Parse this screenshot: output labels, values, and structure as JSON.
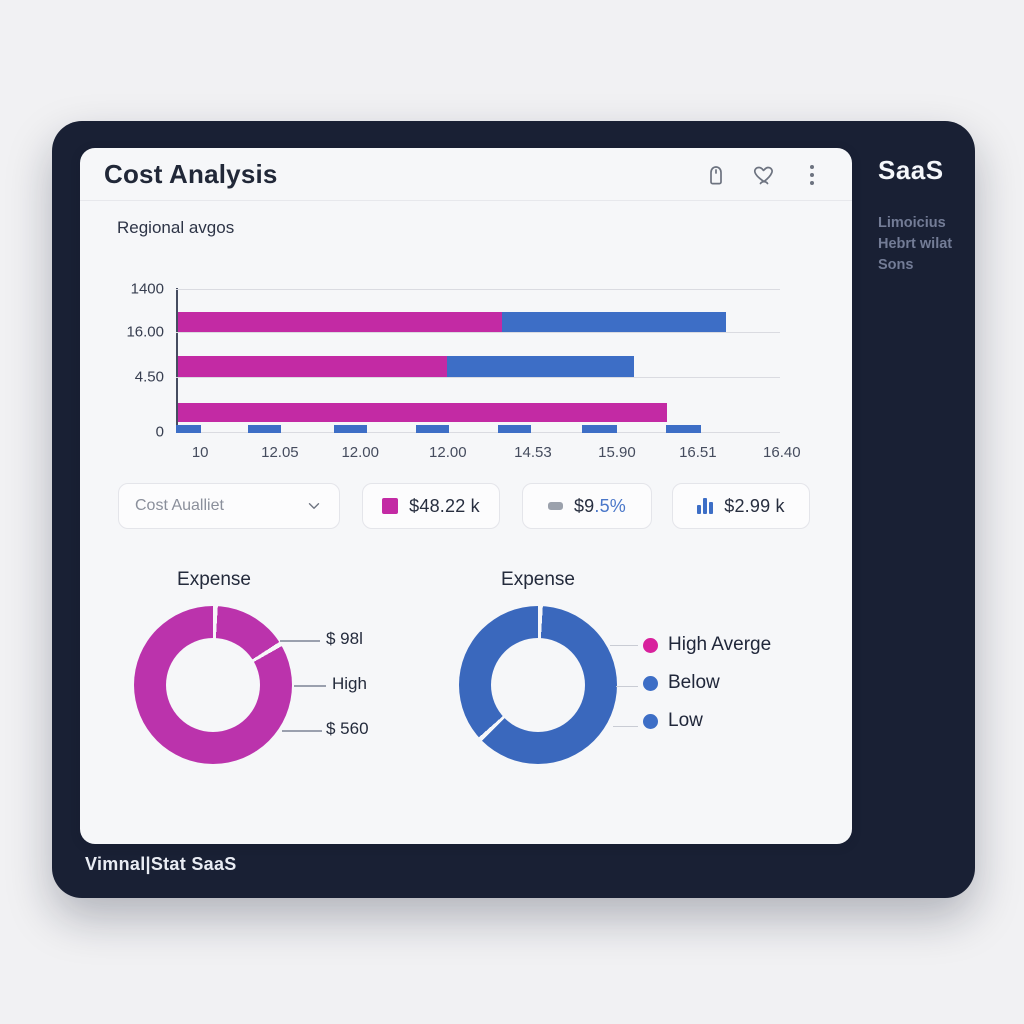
{
  "app": {
    "brand": "SaaS",
    "sidebar_notes": [
      "Limoicius",
      "Hebrt wilat",
      "Sons"
    ],
    "footer_brand": "Vimnal|Stat SaaS"
  },
  "header": {
    "title": "Cost Analysis"
  },
  "subtitle": "Regional avgos",
  "stats": {
    "dropdown": {
      "label": "Cost Aualliet"
    },
    "cards": [
      {
        "icon": "magenta-square",
        "icon_color": "#c32aa4",
        "value": "$48.22 k"
      },
      {
        "icon": "gray-pill",
        "icon_color": "#9ba1ac",
        "value_dark": "$9",
        "value_blue": ".5%"
      },
      {
        "icon": "blue-bars",
        "icon_color": "#3d6ec6",
        "value": "$2.99 k"
      }
    ]
  },
  "chart_data": [
    {
      "type": "bar",
      "id": "regional-stacked-bars",
      "title": "Regional avgos",
      "orientation": "horizontal",
      "stacked": true,
      "grid": true,
      "y_tick_labels": [
        "1400",
        "16.00",
        "4.50",
        "0"
      ],
      "x_tick_labels": [
        "10",
        "12.05",
        "12.00",
        "12.00",
        "14.53",
        "15.90",
        "16.51",
        "16.40"
      ],
      "series": [
        {
          "name": "primary",
          "color": "#c32aa4"
        },
        {
          "name": "secondary",
          "color": "#3d6ec6"
        }
      ],
      "bars": [
        {
          "primary_pct": 53.6,
          "secondary_pct": 37.1
        },
        {
          "primary_pct": 44.5,
          "secondary_pct": 31.0
        },
        {
          "primary_pct": 81.0,
          "secondary_pct": 0
        }
      ],
      "baseline_dashes_pct": [
        [
          0,
          4.1
        ],
        [
          11.9,
          5.5
        ],
        [
          26.2,
          5.5
        ],
        [
          39.7,
          5.5
        ],
        [
          53.3,
          5.5
        ],
        [
          67.2,
          5.8
        ],
        [
          81.1,
          5.8
        ]
      ],
      "dash_color": "#3d6ec6"
    },
    {
      "type": "pie",
      "subtype": "donut",
      "id": "expense-left",
      "title": "Expense",
      "color": "#bb33ac",
      "gap_angles": [
        0,
        57
      ],
      "slices_pct": [
        15.8,
        84.2
      ],
      "labels": [
        "$ 98l",
        "High",
        "$ 560"
      ]
    },
    {
      "type": "pie",
      "subtype": "donut",
      "id": "expense-right",
      "title": "Expense",
      "color": "#3a68bd",
      "gap_angles": [
        0,
        225
      ],
      "slices_pct": [
        62.5,
        37.5
      ],
      "legend": [
        {
          "label": "High Averge",
          "color": "#d8219d"
        },
        {
          "label": "Below",
          "color": "#3d6ec6"
        },
        {
          "label": "Low",
          "color": "#3d6ec6"
        }
      ]
    }
  ]
}
